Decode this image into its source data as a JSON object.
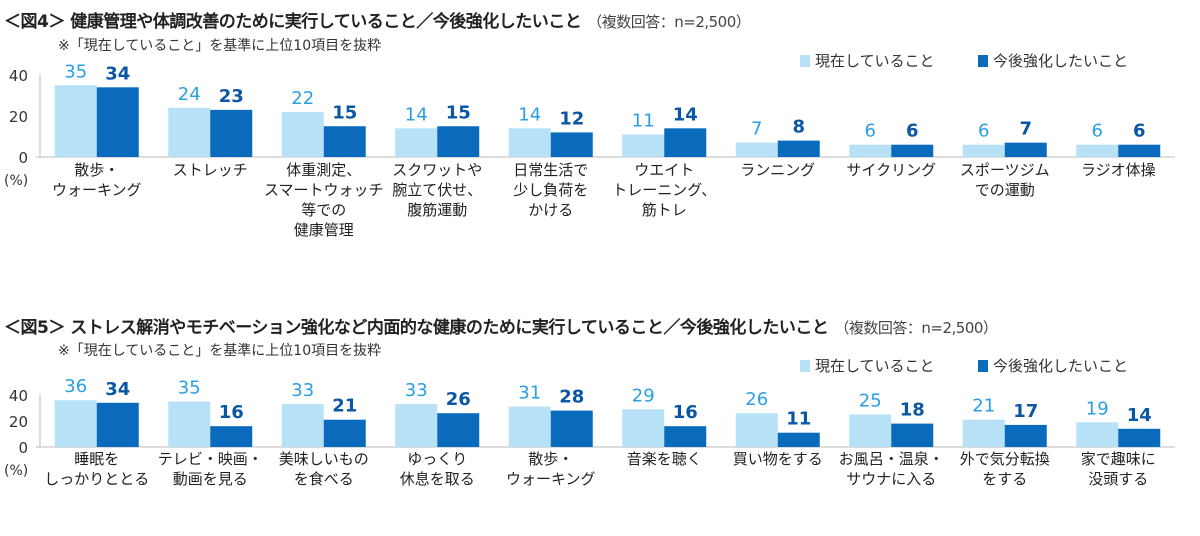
{
  "colors": {
    "current": "#b7e1f7",
    "future": "#0a6bbd",
    "current_label": "#2a9fe3",
    "future_label": "#0b57a4",
    "axis": "#bbbbbb"
  },
  "chart_data": [
    {
      "type": "bar",
      "title": "＜図4＞ 健康管理や体調改善のために実行していること／今後強化したいこと",
      "title_note": "（複数回答：n=2,500）",
      "subtitle": "※「現在していること」を基準に上位10項目を抜粋",
      "ylabel": "(%)",
      "ylim": [
        0,
        40
      ],
      "yticks": [
        0,
        20,
        40
      ],
      "legend_position": "top-right",
      "grid": false,
      "categories": [
        [
          "散歩・",
          "ウォーキング"
        ],
        [
          "ストレッチ"
        ],
        [
          "体重測定、",
          "スマートウォッチ",
          "等での",
          "健康管理"
        ],
        [
          "スクワットや",
          "腕立て伏せ、",
          "腹筋運動"
        ],
        [
          "日常生活で",
          "少し負荷を",
          "かける"
        ],
        [
          "ウエイト",
          "トレーニング、",
          "筋トレ"
        ],
        [
          "ランニング"
        ],
        [
          "サイクリング"
        ],
        [
          "スポーツジム",
          "での運動"
        ],
        [
          "ラジオ体操"
        ]
      ],
      "series": [
        {
          "name": "現在していること",
          "values": [
            35,
            24,
            22,
            14,
            14,
            11,
            7,
            6,
            6,
            6
          ]
        },
        {
          "name": "今後強化したいこと",
          "values": [
            34,
            23,
            15,
            15,
            12,
            14,
            8,
            6,
            7,
            6
          ]
        }
      ]
    },
    {
      "type": "bar",
      "title": "＜図5＞ ストレス解消やモチベーション強化など内面的な健康のために実行していること／今後強化したいこと",
      "title_note": "（複数回答：n=2,500）",
      "subtitle": "※「現在していること」を基準に上位10項目を抜粋",
      "ylabel": "(%)",
      "ylim": [
        0,
        40
      ],
      "yticks": [
        0,
        20,
        40
      ],
      "legend_position": "top-right",
      "grid": false,
      "categories": [
        [
          "睡眠を",
          "しっかりととる"
        ],
        [
          "テレビ・映画・",
          "動画を見る"
        ],
        [
          "美味しいもの",
          "を食べる"
        ],
        [
          "ゆっくり",
          "休息を取る"
        ],
        [
          "散歩・",
          "ウォーキング"
        ],
        [
          "音楽を聴く"
        ],
        [
          "買い物をする"
        ],
        [
          "お風呂・温泉・",
          "サウナに入る"
        ],
        [
          "外で気分転換",
          "をする"
        ],
        [
          "家で趣味に",
          "没頭する"
        ]
      ],
      "series": [
        {
          "name": "現在していること",
          "values": [
            36,
            35,
            33,
            33,
            31,
            29,
            26,
            25,
            21,
            19
          ]
        },
        {
          "name": "今後強化したいこと",
          "values": [
            34,
            16,
            21,
            26,
            28,
            16,
            11,
            18,
            17,
            14
          ]
        }
      ]
    }
  ]
}
